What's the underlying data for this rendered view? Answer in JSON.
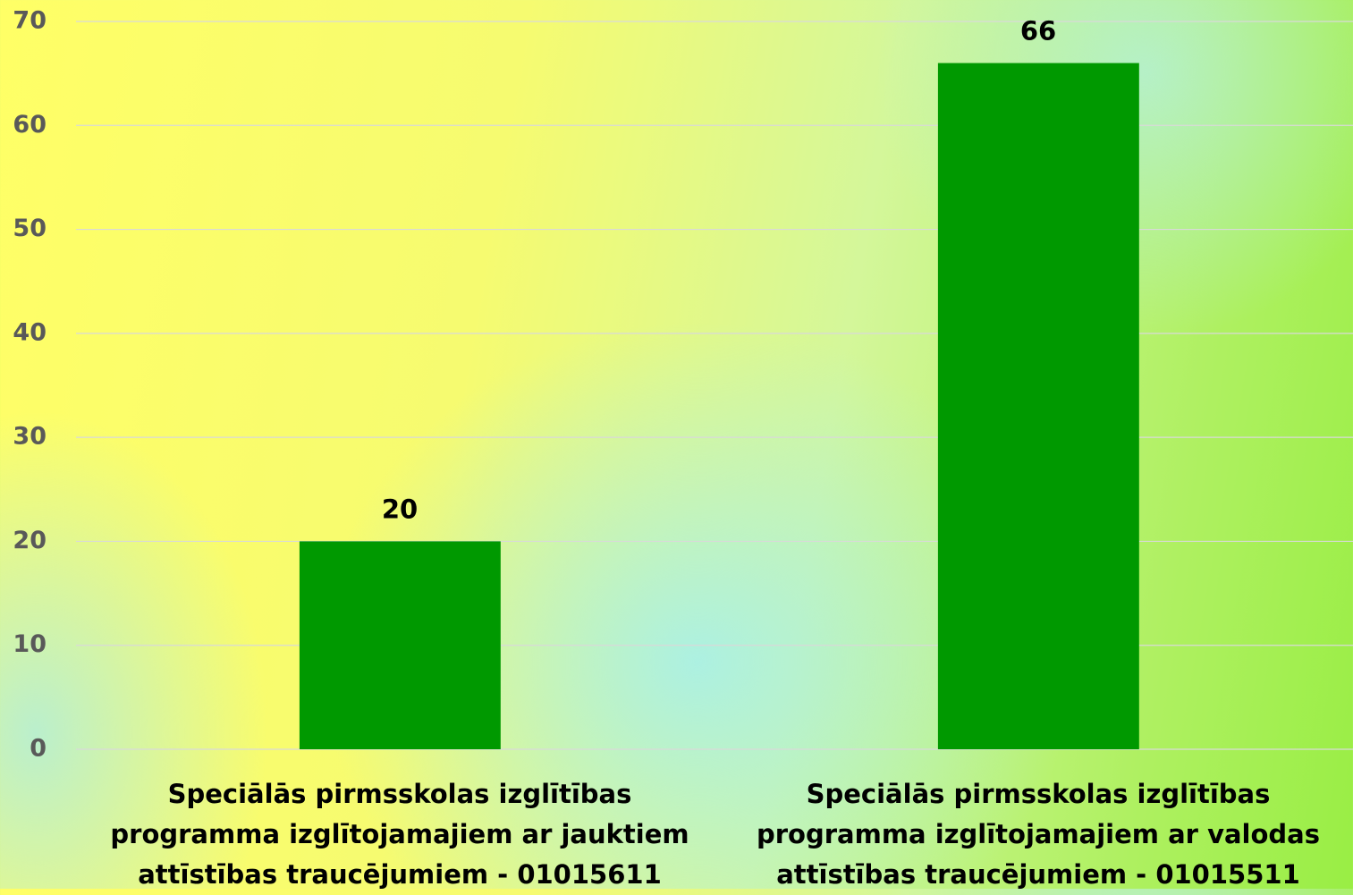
{
  "chart_data": {
    "type": "bar",
    "categories": [
      "Speciālās pirmsskolas izglītības programma izglītojamajiem ar jauktiem attīstības traucējumiem - 01015611",
      "Speciālās pirmsskolas izglītības programma izglītojamajiem ar valodas attīstības traucējumiem - 01015511"
    ],
    "values": [
      20,
      66
    ],
    "color": "#009900",
    "ylim": [
      0,
      70
    ],
    "yticks": [
      0,
      10,
      20,
      30,
      40,
      50,
      60,
      70
    ],
    "grid": true,
    "data_labels": true
  }
}
